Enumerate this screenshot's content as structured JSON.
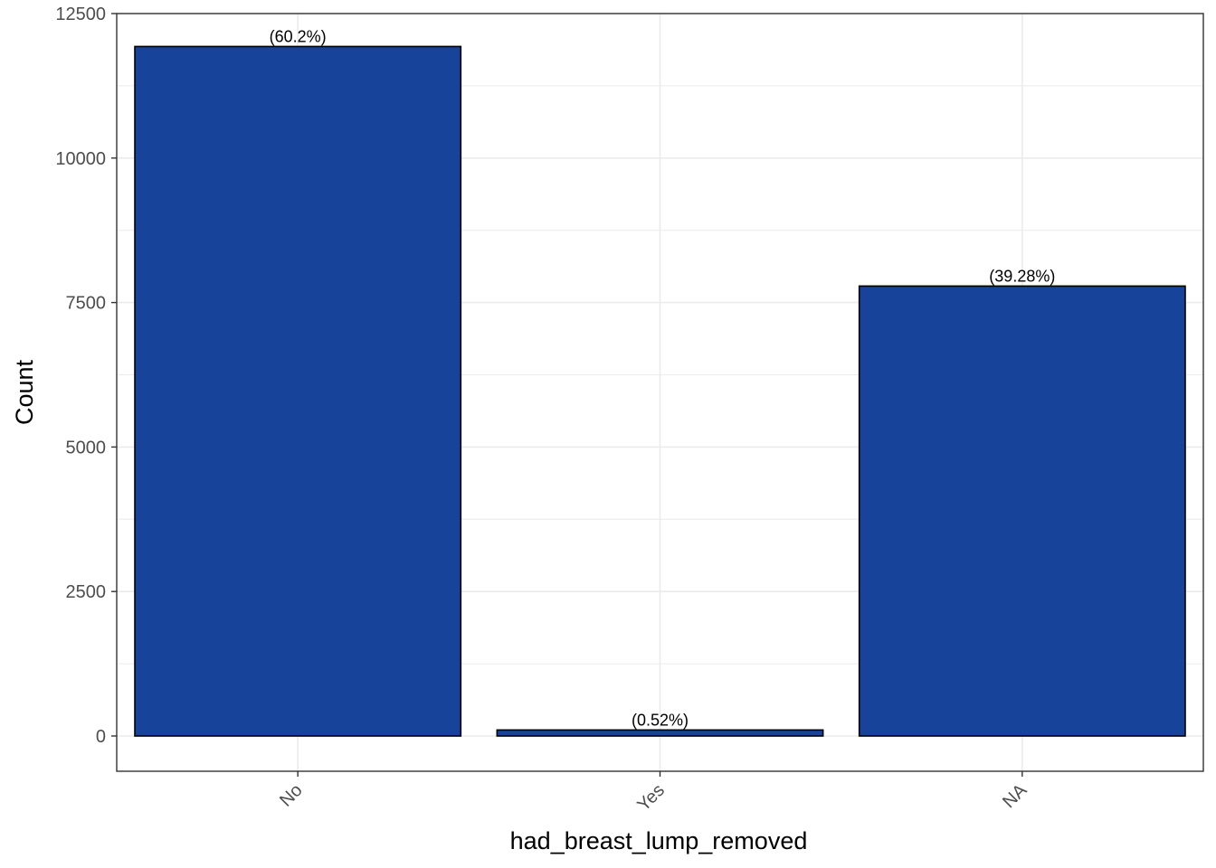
{
  "chart_data": {
    "type": "bar",
    "categories": [
      "No",
      "Yes",
      "NA"
    ],
    "values": [
      11930,
      104,
      7785
    ],
    "data_labels": [
      "(60.2%)",
      "(0.52%)",
      "(39.28%)"
    ],
    "title": "",
    "xlabel": "had_breast_lump_removed",
    "ylabel": "Count",
    "ylim": [
      -600,
      12500
    ],
    "yticks": [
      0,
      2500,
      5000,
      7500,
      10000,
      12500
    ],
    "ytick_labels": [
      "0",
      "2500",
      "5000",
      "7500",
      "10000",
      "12500"
    ],
    "grid": true,
    "bar_color": "#17439B",
    "bar_edge_color": "#000000",
    "grid_color": "#EBEBEB",
    "panel_border_color": "#333333"
  }
}
